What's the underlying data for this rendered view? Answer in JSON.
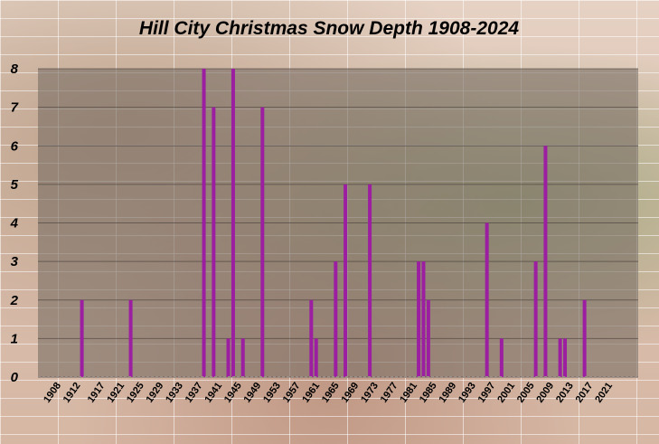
{
  "chart_data": {
    "type": "bar",
    "title": "Hill City Christmas Snow Depth 1908-2024",
    "xlabel": "",
    "ylabel": "",
    "ylim": [
      0,
      8
    ],
    "yticks": [
      "0",
      "1",
      "2",
      "3",
      "4",
      "5",
      "6",
      "7",
      "8"
    ],
    "x_range": [
      1908,
      2024
    ],
    "xticks": [
      "1908",
      "1912",
      "1917",
      "1921",
      "1925",
      "1929",
      "1933",
      "1937",
      "1941",
      "1945",
      "1949",
      "1953",
      "1957",
      "1961",
      "1965",
      "1969",
      "1973",
      "1977",
      "1981",
      "1985",
      "1989",
      "1993",
      "1997",
      "2001",
      "2005",
      "2009",
      "2013",
      "2017",
      "2021"
    ],
    "grid": true,
    "colors": {
      "bar": "#9b1fa0",
      "plot_area": "#7b6f66"
    },
    "points": [
      {
        "year": 1913,
        "value": 2
      },
      {
        "year": 1923,
        "value": 2
      },
      {
        "year": 1938,
        "value": 8
      },
      {
        "year": 1940,
        "value": 7
      },
      {
        "year": 1943,
        "value": 1
      },
      {
        "year": 1944,
        "value": 8
      },
      {
        "year": 1946,
        "value": 1
      },
      {
        "year": 1950,
        "value": 7
      },
      {
        "year": 1960,
        "value": 2
      },
      {
        "year": 1961,
        "value": 1
      },
      {
        "year": 1965,
        "value": 3
      },
      {
        "year": 1967,
        "value": 5
      },
      {
        "year": 1972,
        "value": 5
      },
      {
        "year": 1982,
        "value": 3
      },
      {
        "year": 1983,
        "value": 3
      },
      {
        "year": 1984,
        "value": 2
      },
      {
        "year": 1996,
        "value": 4
      },
      {
        "year": 1999,
        "value": 1
      },
      {
        "year": 2006,
        "value": 3
      },
      {
        "year": 2008,
        "value": 6
      },
      {
        "year": 2011,
        "value": 1
      },
      {
        "year": 2012,
        "value": 1
      },
      {
        "year": 2016,
        "value": 2
      }
    ]
  }
}
